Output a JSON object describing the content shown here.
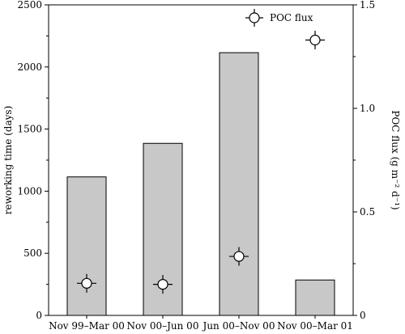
{
  "chart_data": {
    "type": "bar",
    "categories": [
      "Nov 99–Mar 00",
      "Nov 00–Jun 00",
      "Jun 00–Nov 00",
      "Nov 00–Mar 01"
    ],
    "series": [
      {
        "name": "",
        "axis": "left",
        "kind": "bar",
        "values": [
          1115,
          1385,
          2115,
          285
        ]
      },
      {
        "name": "POC flux",
        "axis": "right",
        "kind": "scatter",
        "values": [
          0.155,
          0.15,
          0.285,
          1.33
        ],
        "error": [
          0.045,
          0.045,
          0.045,
          0.045
        ]
      }
    ],
    "ylabel": "reworking time (days)",
    "y2label": "POC flux (g m⁻² d⁻¹)",
    "ylim": [
      0,
      2500
    ],
    "y2lim": [
      0,
      1.5
    ],
    "yticks": [
      "0",
      "500",
      "1000",
      "1500",
      "2000",
      "2500"
    ],
    "y2ticks": [
      "0",
      "0.5",
      "1.0",
      "1.5"
    ],
    "grid": false,
    "legend_position": "top-right"
  }
}
